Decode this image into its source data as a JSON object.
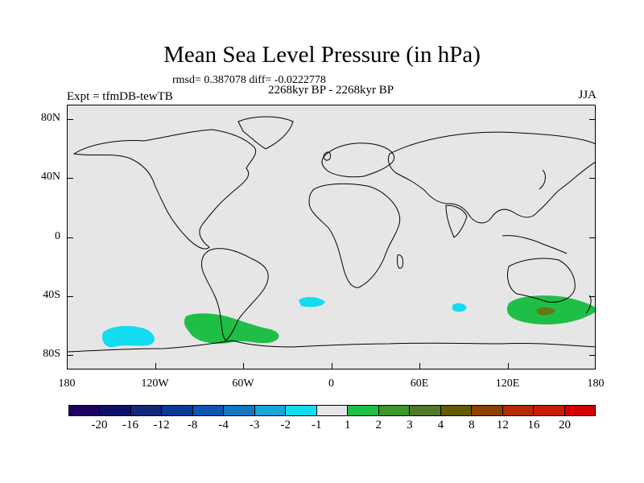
{
  "title": "Mean Sea Level Pressure (in hPa)",
  "stats": "rmsd= 0.387078 diff= -0.0222778",
  "period": "2268kyr BP - 2268kyr BP",
  "experiment": "Expt = tfmDB-tewTB",
  "season": "JJA",
  "y_axis": {
    "labels": [
      "80N",
      "40N",
      "0",
      "40S",
      "80S"
    ],
    "values": [
      80,
      40,
      0,
      -40,
      -80
    ]
  },
  "x_axis": {
    "labels": [
      "180",
      "120W",
      "60W",
      "0",
      "60E",
      "120E",
      "180"
    ],
    "values": [
      -180,
      -120,
      -60,
      0,
      60,
      120,
      180
    ]
  },
  "colorbar": {
    "labels": [
      "-20",
      "-16",
      "-12",
      "-8",
      "-4",
      "-3",
      "-2",
      "-1",
      "1",
      "2",
      "3",
      "4",
      "8",
      "12",
      "16",
      "20"
    ],
    "colors": [
      "#1f0060",
      "#0d1068",
      "#14287a",
      "#0a3a96",
      "#0f55b0",
      "#1478c0",
      "#19a5d8",
      "#14dcf0",
      "#e6e6e6",
      "#1fbe46",
      "#3c9628",
      "#507828",
      "#645a00",
      "#8c4100",
      "#b42d00",
      "#c81e00",
      "#d20000"
    ]
  },
  "colors": {
    "land_line": "#000000",
    "background": "#e6e6e6",
    "anomaly_neg": "#14dcf0",
    "anomaly_pos": "#1fbe46",
    "anomaly_pos2": "#647814"
  }
}
